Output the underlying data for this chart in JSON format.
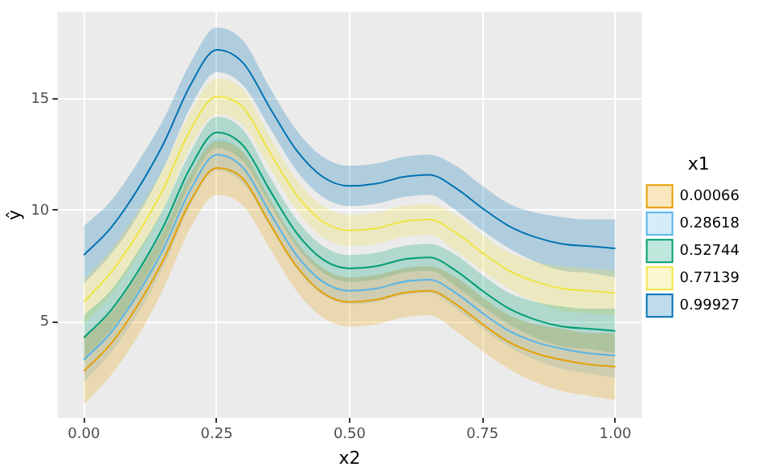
{
  "chart_data": {
    "type": "line",
    "xlabel": "x2",
    "ylabel": "ŷ",
    "legend_title": "x1",
    "legend": "right",
    "grid": true,
    "marker": "none",
    "line_style": "solid",
    "x": [
      0,
      0.05,
      0.1,
      0.15,
      0.2,
      0.25,
      0.3,
      0.35,
      0.4,
      0.45,
      0.5,
      0.55,
      0.6,
      0.65,
      0.7,
      0.75,
      0.8,
      0.85,
      0.9,
      0.95,
      1
    ],
    "xlim": [
      -0.05,
      1.05
    ],
    "xticks": [
      {
        "value": 0,
        "label": "0.00"
      },
      {
        "value": 0.25,
        "label": "0.25"
      },
      {
        "value": 0.5,
        "label": "0.50"
      },
      {
        "value": 0.75,
        "label": "0.75"
      },
      {
        "value": 1,
        "label": "1.00"
      }
    ],
    "ylim": [
      0.7,
      18.9
    ],
    "yticks": [
      5,
      10,
      15
    ],
    "series": [
      {
        "name": "0.00066",
        "color": "#e69f00",
        "values": [
          2.8,
          4.0,
          5.7,
          7.8,
          10.4,
          11.9,
          11.4,
          9.4,
          7.5,
          6.3,
          5.9,
          6.0,
          6.3,
          6.4,
          5.8,
          4.9,
          4.1,
          3.6,
          3.3,
          3.1,
          3.0
        ],
        "lower": [
          1.3,
          2.6,
          4.3,
          6.5,
          9.2,
          10.7,
          10.2,
          8.3,
          6.4,
          5.2,
          4.8,
          4.9,
          5.2,
          5.3,
          4.6,
          3.7,
          2.9,
          2.3,
          1.9,
          1.7,
          1.5
        ],
        "upper": [
          4.3,
          5.4,
          7.1,
          9.1,
          11.6,
          13.1,
          12.6,
          10.5,
          8.6,
          7.4,
          7.0,
          7.1,
          7.4,
          7.5,
          7.0,
          6.1,
          5.3,
          4.9,
          4.7,
          4.5,
          4.5
        ]
      },
      {
        "name": "0.28618",
        "color": "#56b4e9",
        "values": [
          3.3,
          4.5,
          6.2,
          8.3,
          10.9,
          12.5,
          11.9,
          9.9,
          8.0,
          6.8,
          6.4,
          6.5,
          6.8,
          6.9,
          6.3,
          5.4,
          4.6,
          4.1,
          3.8,
          3.6,
          3.5
        ],
        "lower": [
          2.3,
          3.6,
          5.3,
          7.5,
          10.2,
          11.8,
          11.2,
          9.3,
          7.4,
          6.2,
          5.8,
          5.9,
          6.2,
          6.3,
          5.6,
          4.7,
          3.9,
          3.3,
          2.9,
          2.7,
          2.5
        ],
        "upper": [
          4.3,
          5.4,
          7.1,
          9.1,
          11.6,
          13.2,
          12.6,
          10.5,
          8.6,
          7.4,
          7.0,
          7.1,
          7.4,
          7.5,
          7.0,
          6.1,
          5.3,
          4.9,
          4.7,
          4.5,
          4.5
        ]
      },
      {
        "name": "0.52744",
        "color": "#009e73",
        "values": [
          4.3,
          5.5,
          7.2,
          9.3,
          11.9,
          13.5,
          12.9,
          10.9,
          9.0,
          7.8,
          7.4,
          7.5,
          7.8,
          7.9,
          7.3,
          6.4,
          5.6,
          5.1,
          4.8,
          4.7,
          4.6
        ],
        "lower": [
          3.3,
          4.6,
          6.3,
          8.5,
          11.2,
          12.8,
          12.2,
          10.3,
          8.4,
          7.2,
          6.8,
          6.9,
          7.2,
          7.3,
          6.6,
          5.7,
          4.9,
          4.3,
          3.9,
          3.8,
          3.6
        ],
        "upper": [
          5.3,
          6.4,
          8.1,
          10.1,
          12.6,
          14.2,
          13.6,
          11.5,
          9.6,
          8.4,
          8.0,
          8.1,
          8.4,
          8.5,
          8.0,
          7.1,
          6.3,
          5.9,
          5.7,
          5.6,
          5.6
        ]
      },
      {
        "name": "0.77139",
        "color": "#f0e442",
        "values": [
          5.9,
          7.2,
          8.9,
          11.0,
          13.6,
          15.1,
          14.6,
          12.6,
          10.7,
          9.5,
          9.1,
          9.2,
          9.5,
          9.6,
          9.0,
          8.1,
          7.3,
          6.8,
          6.5,
          6.4,
          6.3
        ],
        "lower": [
          4.9,
          6.2,
          7.9,
          10.1,
          12.8,
          14.3,
          13.8,
          11.9,
          10.0,
          8.8,
          8.4,
          8.5,
          8.8,
          8.9,
          8.2,
          7.3,
          6.5,
          5.9,
          5.5,
          5.4,
          5.3
        ],
        "upper": [
          6.9,
          8.2,
          9.9,
          11.9,
          14.4,
          15.9,
          15.4,
          13.3,
          11.4,
          10.2,
          9.8,
          9.9,
          10.2,
          10.3,
          9.8,
          8.9,
          8.1,
          7.7,
          7.5,
          7.4,
          7.3
        ]
      },
      {
        "name": "0.99927",
        "color": "#0072b2",
        "values": [
          8.0,
          9.2,
          10.9,
          13.0,
          15.6,
          17.2,
          16.6,
          14.6,
          12.7,
          11.5,
          11.1,
          11.2,
          11.5,
          11.6,
          11.0,
          10.1,
          9.3,
          8.8,
          8.5,
          8.4,
          8.3
        ],
        "lower": [
          6.7,
          8.0,
          9.7,
          11.9,
          14.6,
          16.2,
          15.6,
          13.7,
          11.8,
          10.6,
          10.2,
          10.3,
          10.6,
          10.7,
          10.0,
          9.1,
          8.3,
          7.7,
          7.3,
          7.2,
          7.0
        ],
        "upper": [
          9.3,
          10.4,
          12.1,
          14.1,
          16.6,
          18.2,
          17.6,
          15.5,
          13.6,
          12.4,
          12.0,
          12.1,
          12.4,
          12.5,
          12.0,
          11.1,
          10.3,
          9.9,
          9.7,
          9.6,
          9.6
        ]
      }
    ]
  }
}
